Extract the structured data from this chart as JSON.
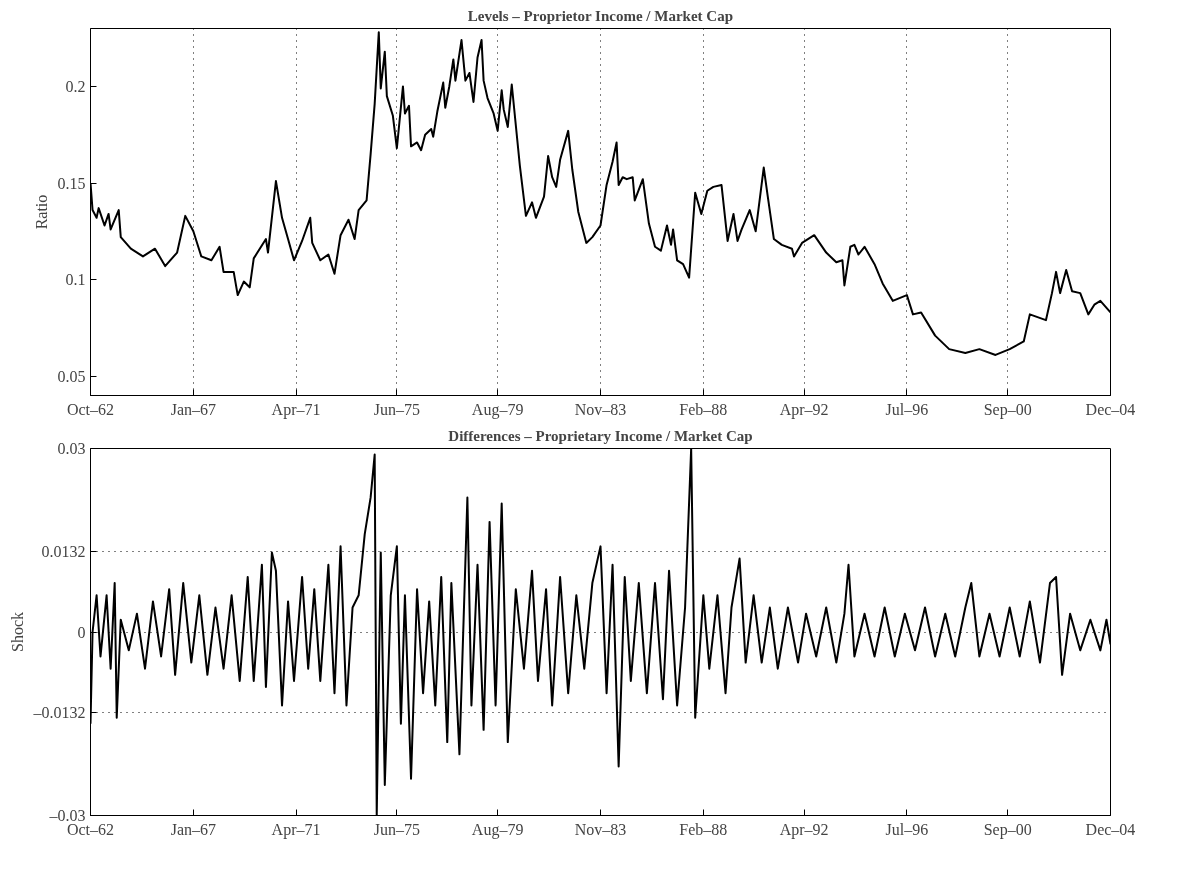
{
  "chart_data": [
    {
      "type": "line",
      "title": "Levels – Proprietor Income / Market Cap",
      "ylabel": "Ratio",
      "grid": "x",
      "line_style": "solid",
      "xlim": [
        "1962-10",
        "2004-12"
      ],
      "ylim": [
        0.04,
        0.23
      ],
      "yticks": [
        0.05,
        0.1,
        0.15,
        0.2
      ],
      "xticks": [
        {
          "value": "1962-10",
          "label": "Oct–62"
        },
        {
          "value": "1967-01",
          "label": "Jan–67"
        },
        {
          "value": "1971-04",
          "label": "Apr–71"
        },
        {
          "value": "1975-06",
          "label": "Jun–75"
        },
        {
          "value": "1979-08",
          "label": "Aug–79"
        },
        {
          "value": "1983-11",
          "label": "Nov–83"
        },
        {
          "value": "1988-02",
          "label": "Feb–88"
        },
        {
          "value": "1992-04",
          "label": "Apr–92"
        },
        {
          "value": "1996-07",
          "label": "Jul–96"
        },
        {
          "value": "2000-09",
          "label": "Sep–00"
        },
        {
          "value": "2004-12",
          "label": "Dec–04"
        }
      ],
      "series": [
        {
          "color": "#000000",
          "x": [
            "1962-10",
            "1962-11",
            "1963-01",
            "1963-02",
            "1963-05",
            "1963-07",
            "1963-08",
            "1963-12",
            "1964-01",
            "1964-06",
            "1964-12",
            "1965-06",
            "1965-11",
            "1966-05",
            "1966-09",
            "1967-01",
            "1967-05",
            "1967-10",
            "1968-02",
            "1968-04",
            "1968-09",
            "1968-11",
            "1969-02",
            "1969-05",
            "1969-07",
            "1970-01",
            "1970-02",
            "1970-06",
            "1970-09",
            "1970-12",
            "1971-03",
            "1971-07",
            "1971-11",
            "1971-12",
            "1972-04",
            "1972-08",
            "1972-11",
            "1973-02",
            "1973-06",
            "1973-09",
            "1973-11",
            "1974-03",
            "1974-05",
            "1974-07",
            "1974-09",
            "1974-10",
            "1974-12",
            "1975-01",
            "1975-04",
            "1975-06",
            "1975-09",
            "1975-10",
            "1975-12",
            "1976-01",
            "1976-04",
            "1976-06",
            "1976-08",
            "1976-11",
            "1976-12",
            "1977-02",
            "1977-05",
            "1977-06",
            "1977-08",
            "1977-10",
            "1977-11",
            "1978-02",
            "1978-04",
            "1978-06",
            "1978-08",
            "1978-10",
            "1978-12",
            "1979-01",
            "1979-03",
            "1979-06",
            "1979-08",
            "1979-10",
            "1979-11",
            "1980-01",
            "1980-03",
            "1980-07",
            "1980-10",
            "1981-01",
            "1981-03",
            "1981-07",
            "1981-09",
            "1981-11",
            "1982-01",
            "1982-03",
            "1982-07",
            "1982-09",
            "1982-12",
            "1983-04",
            "1983-07",
            "1983-11",
            "1984-02",
            "1984-05",
            "1984-07",
            "1984-08",
            "1984-10",
            "1984-12",
            "1985-03",
            "1985-04",
            "1985-08",
            "1985-11",
            "1986-02",
            "1986-05",
            "1986-08",
            "1986-10",
            "1986-11",
            "1987-01",
            "1987-04",
            "1987-07",
            "1987-10",
            "1988-01",
            "1988-04",
            "1988-07",
            "1988-11",
            "1989-02",
            "1989-05",
            "1989-07",
            "1989-09",
            "1990-01",
            "1990-04",
            "1990-08",
            "1990-10",
            "1991-01",
            "1991-05",
            "1991-10",
            "1991-11",
            "1992-03",
            "1992-09",
            "1993-03",
            "1993-08",
            "1993-11",
            "1993-12",
            "1994-03",
            "1994-05",
            "1994-07",
            "1994-10",
            "1995-03",
            "1995-07",
            "1995-12",
            "1996-07",
            "1996-10",
            "1997-02",
            "1997-09",
            "1998-04",
            "1998-12",
            "1999-07",
            "2000-03",
            "2000-10",
            "2001-05",
            "2001-08",
            "2002-04",
            "2002-07",
            "2002-09",
            "2002-11",
            "2003-02",
            "2003-05",
            "2003-09",
            "2004-01",
            "2004-04",
            "2004-07",
            "2004-12"
          ],
          "values": [
            0.15,
            0.136,
            0.132,
            0.137,
            0.128,
            0.134,
            0.126,
            0.136,
            0.122,
            0.116,
            0.112,
            0.116,
            0.107,
            0.114,
            0.133,
            0.125,
            0.112,
            0.11,
            0.117,
            0.104,
            0.104,
            0.092,
            0.099,
            0.096,
            0.111,
            0.121,
            0.114,
            0.151,
            0.132,
            0.121,
            0.11,
            0.12,
            0.132,
            0.119,
            0.11,
            0.113,
            0.103,
            0.123,
            0.131,
            0.121,
            0.136,
            0.141,
            0.165,
            0.191,
            0.228,
            0.199,
            0.218,
            0.195,
            0.185,
            0.168,
            0.2,
            0.186,
            0.19,
            0.169,
            0.171,
            0.167,
            0.175,
            0.178,
            0.174,
            0.187,
            0.202,
            0.189,
            0.2,
            0.214,
            0.203,
            0.224,
            0.203,
            0.207,
            0.192,
            0.215,
            0.224,
            0.203,
            0.194,
            0.186,
            0.177,
            0.198,
            0.188,
            0.179,
            0.201,
            0.159,
            0.133,
            0.14,
            0.132,
            0.143,
            0.164,
            0.153,
            0.148,
            0.162,
            0.177,
            0.157,
            0.135,
            0.119,
            0.122,
            0.128,
            0.149,
            0.161,
            0.171,
            0.149,
            0.153,
            0.152,
            0.153,
            0.141,
            0.152,
            0.129,
            0.117,
            0.115,
            0.128,
            0.118,
            0.126,
            0.11,
            0.108,
            0.101,
            0.145,
            0.134,
            0.146,
            0.148,
            0.149,
            0.12,
            0.134,
            0.12,
            0.126,
            0.136,
            0.125,
            0.158,
            0.143,
            0.121,
            0.118,
            0.116,
            0.112,
            0.119,
            0.123,
            0.114,
            0.109,
            0.11,
            0.097,
            0.117,
            0.118,
            0.113,
            0.117,
            0.108,
            0.098,
            0.089,
            0.092,
            0.082,
            0.083,
            0.071,
            0.064,
            0.062,
            0.064,
            0.061,
            0.064,
            0.068,
            0.082,
            0.079,
            0.093,
            0.104,
            0.093,
            0.105,
            0.094,
            0.093,
            0.082,
            0.087,
            0.089,
            0.083
          ]
        }
      ]
    },
    {
      "type": "line",
      "title": "Differences – Proprietary Income / Market Cap",
      "ylabel": "Shock",
      "grid": "y",
      "line_style": "solid",
      "xlim": [
        "1962-10",
        "2004-12"
      ],
      "ylim": [
        -0.03,
        0.03
      ],
      "yticks": [
        {
          "value": -0.03,
          "label": "–0.03"
        },
        {
          "value": -0.0132,
          "label": "–0.0132"
        },
        0,
        0.0132,
        0.03
      ],
      "xticks": [
        {
          "value": "1962-10",
          "label": "Oct–62"
        },
        {
          "value": "1967-01",
          "label": "Jan–67"
        },
        {
          "value": "1971-04",
          "label": "Apr–71"
        },
        {
          "value": "1975-06",
          "label": "Jun–75"
        },
        {
          "value": "1979-08",
          "label": "Aug–79"
        },
        {
          "value": "1983-11",
          "label": "Nov–83"
        },
        {
          "value": "1988-02",
          "label": "Feb–88"
        },
        {
          "value": "1992-04",
          "label": "Apr–92"
        },
        {
          "value": "1996-07",
          "label": "Jul–96"
        },
        {
          "value": "2000-09",
          "label": "Sep–00"
        },
        {
          "value": "2004-12",
          "label": "Dec–04"
        }
      ],
      "series": [
        {
          "color": "#000000",
          "x": [
            "1962-10",
            "1962-11",
            "1963-01",
            "1963-03",
            "1963-06",
            "1963-08",
            "1963-10",
            "1963-11",
            "1964-01",
            "1964-05",
            "1964-09",
            "1965-01",
            "1965-05",
            "1965-09",
            "1966-01",
            "1966-04",
            "1966-08",
            "1966-12",
            "1967-04",
            "1967-08",
            "1967-12",
            "1968-04",
            "1968-08",
            "1968-12",
            "1969-04",
            "1969-07",
            "1969-11",
            "1970-01",
            "1970-04",
            "1970-06",
            "1970-09",
            "1970-12",
            "1971-03",
            "1971-07",
            "1971-10",
            "1972-01",
            "1972-04",
            "1972-08",
            "1972-11",
            "1973-02",
            "1973-05",
            "1973-08",
            "1973-11",
            "1974-02",
            "1974-05",
            "1974-07",
            "1974-08",
            "1974-10",
            "1974-12",
            "1975-03",
            "1975-06",
            "1975-08",
            "1975-10",
            "1976-01",
            "1976-04",
            "1976-07",
            "1976-10",
            "1977-01",
            "1977-04",
            "1977-07",
            "1977-09",
            "1978-01",
            "1978-05",
            "1978-07",
            "1978-10",
            "1979-01",
            "1979-04",
            "1979-07",
            "1979-10",
            "1980-01",
            "1980-05",
            "1980-09",
            "1981-01",
            "1981-04",
            "1981-08",
            "1981-11",
            "1982-03",
            "1982-07",
            "1982-11",
            "1983-03",
            "1983-07",
            "1983-11",
            "1984-02",
            "1984-05",
            "1984-08",
            "1984-11",
            "1985-02",
            "1985-06",
            "1985-10",
            "1986-02",
            "1986-06",
            "1986-09",
            "1987-01",
            "1987-05",
            "1987-08",
            "1987-10",
            "1988-02",
            "1988-05",
            "1988-09",
            "1989-01",
            "1989-04",
            "1989-08",
            "1989-11",
            "1990-03",
            "1990-07",
            "1990-11",
            "1991-03",
            "1991-08",
            "1992-01",
            "1992-05",
            "1992-10",
            "1993-03",
            "1993-08",
            "1993-12",
            "1994-02",
            "1994-05",
            "1994-10",
            "1995-03",
            "1995-08",
            "1996-01",
            "1996-06",
            "1996-11",
            "1997-04",
            "1997-09",
            "1998-02",
            "1998-07",
            "1998-12",
            "1999-03",
            "1999-07",
            "1999-12",
            "2000-05",
            "2000-10",
            "2001-03",
            "2001-08",
            "2002-01",
            "2002-06",
            "2002-09",
            "2002-12",
            "2003-04",
            "2003-09",
            "2004-02",
            "2004-07",
            "2004-10",
            "2004-12"
          ],
          "values": [
            -0.015,
            0.0,
            0.006,
            -0.004,
            0.006,
            -0.006,
            0.008,
            -0.014,
            0.002,
            -0.003,
            0.003,
            -0.006,
            0.005,
            -0.004,
            0.007,
            -0.007,
            0.008,
            -0.005,
            0.006,
            -0.007,
            0.004,
            -0.006,
            0.006,
            -0.008,
            0.009,
            -0.008,
            0.011,
            -0.009,
            0.013,
            0.01,
            -0.012,
            0.005,
            -0.008,
            0.009,
            -0.006,
            0.007,
            -0.008,
            0.011,
            -0.01,
            0.014,
            -0.012,
            0.004,
            0.006,
            0.016,
            0.022,
            0.029,
            -0.03,
            0.013,
            -0.025,
            0.006,
            0.014,
            -0.015,
            0.006,
            -0.024,
            0.007,
            -0.01,
            0.005,
            -0.012,
            0.009,
            -0.018,
            0.008,
            -0.02,
            0.022,
            -0.012,
            0.011,
            -0.016,
            0.018,
            -0.012,
            0.021,
            -0.018,
            0.007,
            -0.006,
            0.01,
            -0.008,
            0.007,
            -0.012,
            0.009,
            -0.01,
            0.006,
            -0.006,
            0.008,
            0.014,
            -0.01,
            0.011,
            -0.022,
            0.009,
            -0.008,
            0.008,
            -0.01,
            0.008,
            -0.011,
            0.01,
            -0.012,
            0.004,
            0.03,
            -0.014,
            0.006,
            -0.006,
            0.006,
            -0.01,
            0.004,
            0.012,
            -0.005,
            0.006,
            -0.005,
            0.004,
            -0.006,
            0.004,
            -0.005,
            0.003,
            -0.004,
            0.004,
            -0.005,
            0.003,
            0.011,
            -0.004,
            0.003,
            -0.004,
            0.004,
            -0.004,
            0.003,
            -0.003,
            0.004,
            -0.004,
            0.003,
            -0.004,
            0.004,
            0.008,
            -0.004,
            0.003,
            -0.004,
            0.004,
            -0.004,
            0.005,
            -0.005,
            0.008,
            0.009,
            -0.007,
            0.003,
            -0.003,
            0.002,
            -0.003,
            0.002,
            -0.002
          ]
        }
      ]
    }
  ]
}
